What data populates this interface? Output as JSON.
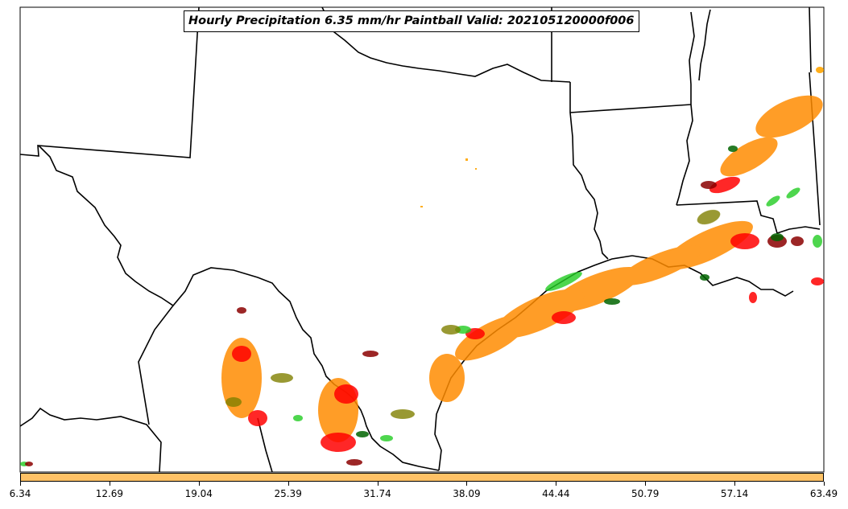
{
  "title": "Hourly Precipitation 6.35 mm/hr Paintball Valid: 202105120000f006",
  "colorbar": {
    "color": "#ffc266",
    "ticks": [
      "6.34",
      "12.69",
      "19.04",
      "25.39",
      "31.74",
      "38.09",
      "44.44",
      "50.79",
      "57.14",
      "63.49"
    ]
  },
  "map": {
    "region": "Texas / Gulf Coast",
    "paintball_colors": [
      "#ff0000",
      "#ff8c00",
      "#22cc22",
      "#8b0000",
      "#808000",
      "#006400",
      "#ffa500",
      "#a0522d"
    ]
  }
}
